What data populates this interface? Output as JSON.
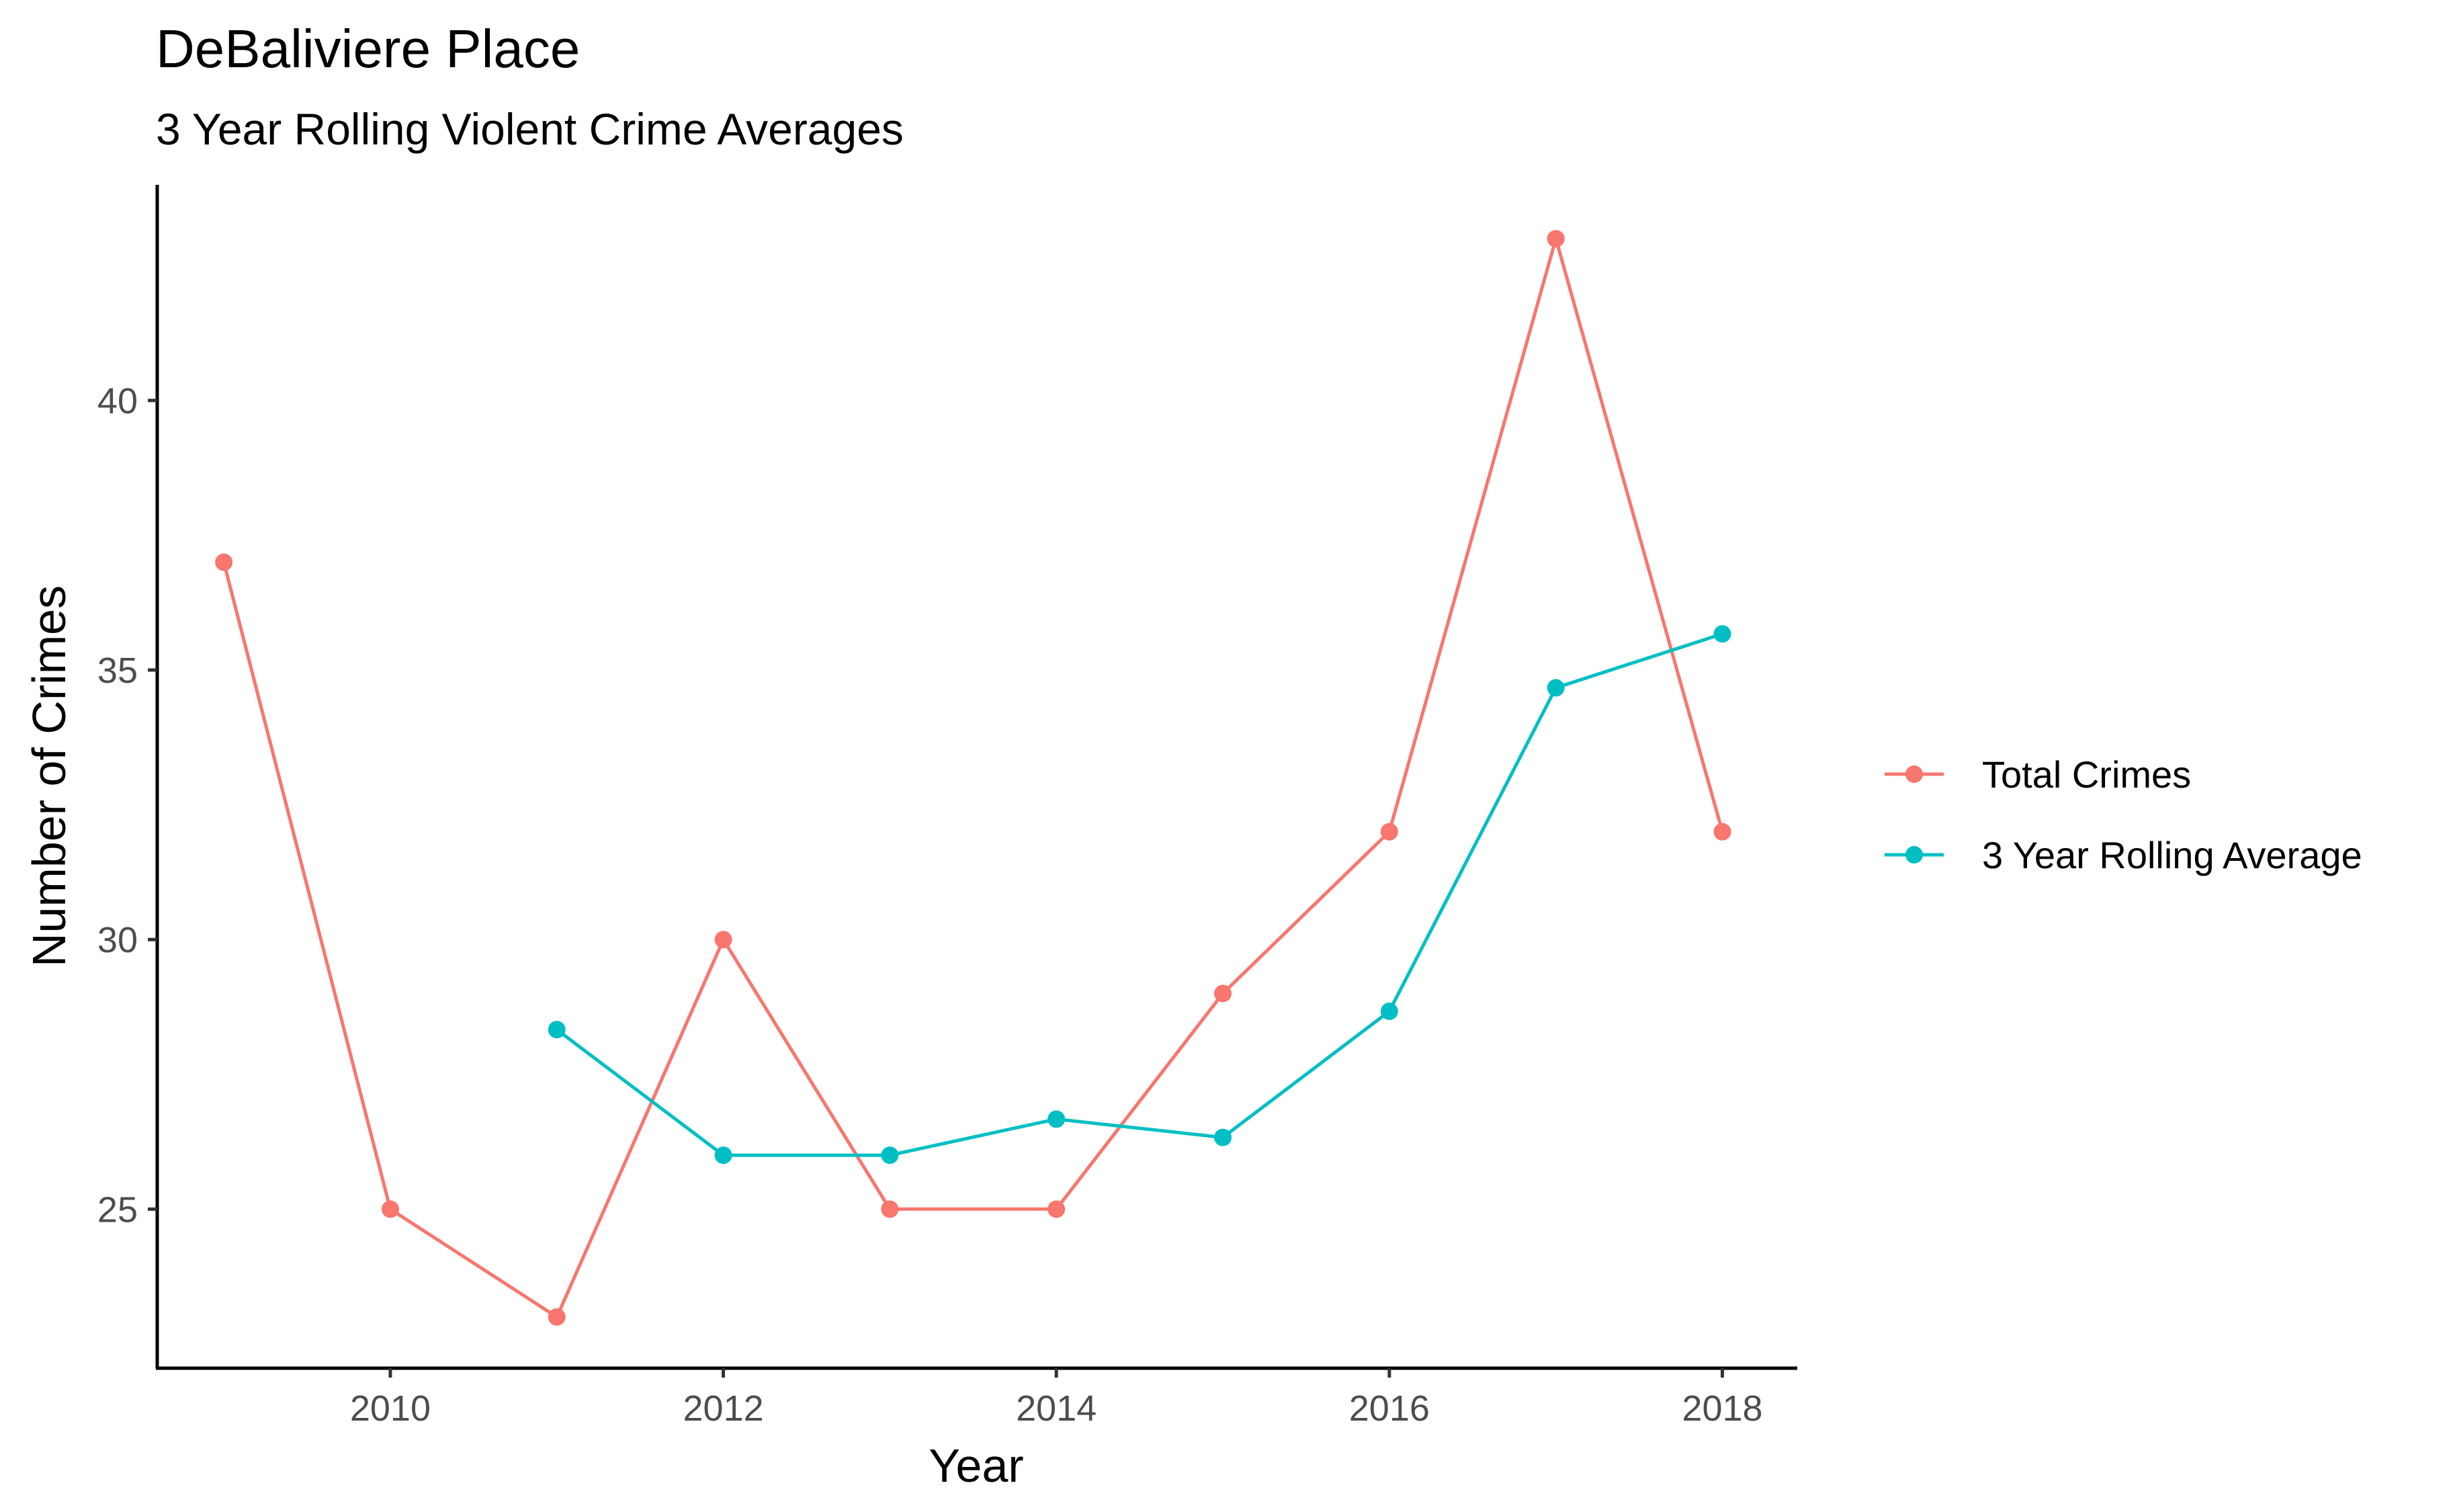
{
  "chart_data": {
    "type": "line",
    "title": "DeBaliviere Place",
    "subtitle": "3 Year Rolling Violent Crime Averages",
    "xlabel": "Year",
    "ylabel": "Number of Crimes",
    "xlim": [
      2008.6,
      2018.45
    ],
    "ylim": [
      22.05,
      44.0
    ],
    "x_ticks": [
      2010,
      2012,
      2014,
      2016,
      2018
    ],
    "y_ticks": [
      25,
      30,
      35,
      40
    ],
    "grid": false,
    "legend_position": "right",
    "series": [
      {
        "name": "Total Crimes",
        "color": "#F8766D",
        "x": [
          2009,
          2010,
          2011,
          2012,
          2013,
          2014,
          2015,
          2016,
          2017,
          2018
        ],
        "values": [
          37,
          25,
          23,
          30,
          25,
          25,
          29,
          32,
          43,
          32
        ]
      },
      {
        "name": "3 Year Rolling Average",
        "color": "#00BFC4",
        "x": [
          2011,
          2012,
          2013,
          2014,
          2015,
          2016,
          2017,
          2018
        ],
        "values": [
          28.33,
          26.0,
          26.0,
          26.67,
          26.33,
          28.67,
          34.67,
          35.67
        ]
      }
    ]
  }
}
